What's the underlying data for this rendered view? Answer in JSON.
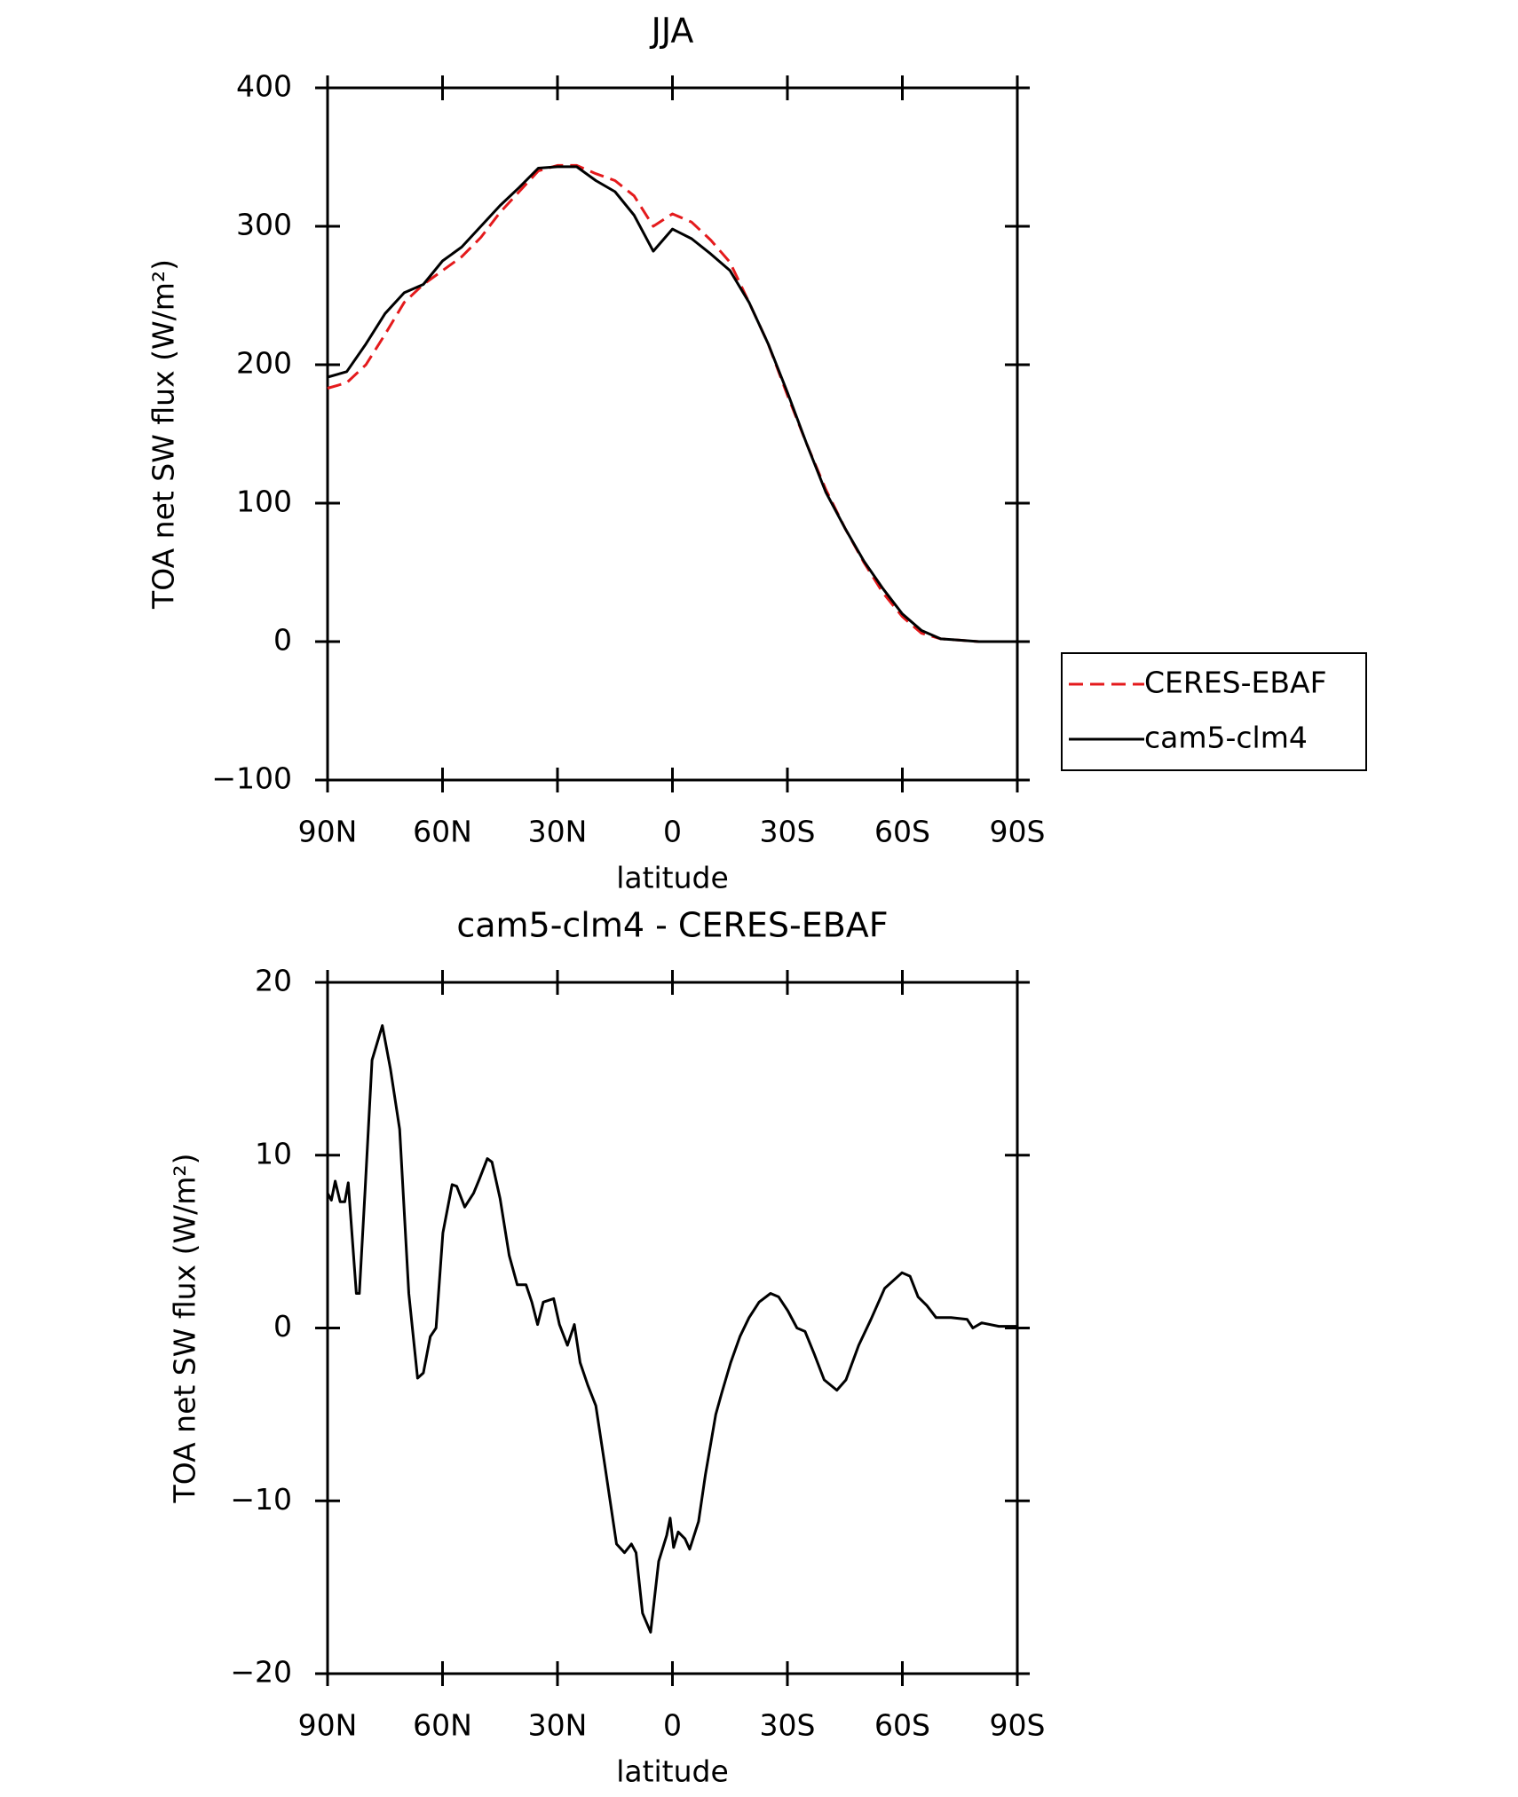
{
  "chart_data": [
    {
      "type": "line",
      "title": "JJA",
      "x_label": "latitude",
      "y_label": "TOA net SW flux (W/m²)",
      "x": [
        90,
        85,
        80,
        75,
        70,
        65,
        60,
        55,
        50,
        45,
        40,
        35,
        30,
        25,
        20,
        15,
        10,
        5,
        0,
        -5,
        -10,
        -15,
        -20,
        -25,
        -30,
        -35,
        -40,
        -45,
        -50,
        -55,
        -60,
        -65,
        -70,
        -75,
        -80,
        -85,
        -90
      ],
      "series": [
        {
          "name": "CERES-EBAF",
          "color": "#e41a1c",
          "line_style": "dashed",
          "values": [
            183,
            187,
            200,
            222,
            245,
            258,
            268,
            278,
            292,
            310,
            325,
            340,
            344,
            344,
            338,
            333,
            322,
            300,
            309,
            303,
            290,
            274,
            245,
            215,
            178,
            143,
            110,
            82,
            57,
            35,
            18,
            6,
            2,
            1,
            0,
            0,
            0
          ]
        },
        {
          "name": "cam5-clm4",
          "color": "#000000",
          "line_style": "solid",
          "values": [
            191,
            195,
            215,
            237,
            252,
            258,
            275,
            285,
            300,
            315,
            328,
            342,
            343,
            343,
            333,
            325,
            308,
            282,
            298,
            291,
            280,
            268,
            245,
            215,
            180,
            143,
            108,
            82,
            58,
            38,
            20,
            8,
            2,
            1,
            0,
            0,
            0
          ]
        }
      ],
      "xlim": [
        90,
        -90
      ],
      "xticks": [
        {
          "value": 90,
          "label": "90N"
        },
        {
          "value": 60,
          "label": "60N"
        },
        {
          "value": 30,
          "label": "30N"
        },
        0,
        {
          "value": -30,
          "label": "30S"
        },
        {
          "value": -60,
          "label": "60S"
        },
        {
          "value": -90,
          "label": "90S"
        }
      ],
      "ylim": [
        -100,
        400
      ],
      "yticks": [
        {
          "value": -100,
          "label": "−100"
        },
        0,
        100,
        200,
        300,
        400
      ],
      "legend": "right"
    },
    {
      "type": "line",
      "title": "cam5-clm4 - CERES-EBAF",
      "x_label": "latitude",
      "y_label": "TOA net SW flux (W/m²)",
      "x": [
        90,
        89,
        88,
        86.7,
        85.5,
        84.6,
        82.5,
        81.7,
        80.2,
        78.4,
        75.7,
        73.6,
        71.2,
        68.8,
        66.5,
        65,
        63.2,
        61.7,
        59.9,
        57.5,
        56.3,
        54.2,
        51.9,
        50.4,
        48.3,
        47.1,
        45,
        42.6,
        40.5,
        38.2,
        36.7,
        35.2,
        33.7,
        31,
        29.5,
        27.4,
        25.6,
        24.1,
        22.1,
        20,
        17.6,
        14.6,
        12.5,
        10.7,
        9.5,
        7.8,
        5.7,
        3.6,
        1.5,
        0.6,
        -0.3,
        -1.5,
        -3.3,
        -4.5,
        -6.8,
        -8.6,
        -11.3,
        -12.8,
        -15.2,
        -17.6,
        -20,
        -22.6,
        -25.6,
        -27.7,
        -30.1,
        -32.5,
        -34.6,
        -37,
        -39.6,
        -42.9,
        -45.3,
        -48.6,
        -51.8,
        -55.4,
        -59.9,
        -62,
        -64.1,
        -66.4,
        -68.8,
        -72.7,
        -76.9,
        -78.4,
        -80.7,
        -85.2,
        -90
      ],
      "values": [
        7.8,
        7.4,
        8.5,
        7.3,
        7.3,
        8.4,
        2.0,
        2.0,
        8.0,
        15.5,
        17.5,
        15,
        11.5,
        2,
        -2.9,
        -2.6,
        -0.5,
        0,
        5.5,
        8.3,
        8.2,
        7.0,
        7.8,
        8.6,
        9.8,
        9.6,
        7.5,
        4.2,
        2.5,
        2.5,
        1.5,
        0.2,
        1.5,
        1.7,
        0.2,
        -1,
        0.2,
        -2,
        -3.3,
        -4.5,
        -8,
        -12.5,
        -13,
        -12.5,
        -13,
        -16.5,
        -17.6,
        -13.5,
        -12,
        -11,
        -12.7,
        -11.8,
        -12.2,
        -12.8,
        -11.2,
        -8.5,
        -5,
        -3.8,
        -2,
        -0.5,
        0.6,
        1.5,
        2,
        1.8,
        1,
        0,
        -0.2,
        -1.5,
        -3,
        -3.6,
        -3,
        -1,
        0.5,
        2.3,
        3.2,
        3,
        1.8,
        1.3,
        0.6,
        0.6,
        0.5,
        0,
        0.3,
        0.1,
        0.1
      ],
      "color": "#000000",
      "xlim": [
        90,
        -90
      ],
      "xticks": [
        {
          "value": 90,
          "label": "90N"
        },
        {
          "value": 60,
          "label": "60N"
        },
        {
          "value": 30,
          "label": "30N"
        },
        0,
        {
          "value": -30,
          "label": "30S"
        },
        {
          "value": -60,
          "label": "60S"
        },
        {
          "value": -90,
          "label": "90S"
        }
      ],
      "ylim": [
        -20,
        20
      ],
      "yticks": [
        {
          "value": -20,
          "label": "−20"
        },
        {
          "value": -10,
          "label": "−10"
        },
        0,
        10,
        20
      ]
    }
  ]
}
